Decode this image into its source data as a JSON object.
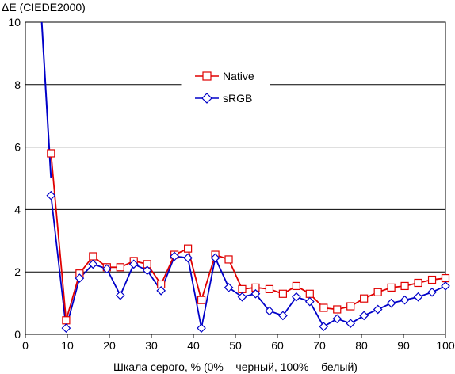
{
  "chart_data": {
    "type": "line",
    "title": "",
    "ylabel": "ΔE (CIEDE2000)",
    "xlabel": "Шкала серого, % (0% – черный, 100% – белый)",
    "xlim": [
      0,
      100
    ],
    "ylim": [
      0,
      10
    ],
    "x_ticks": [
      "0",
      "10",
      "20",
      "30",
      "40",
      "50",
      "60",
      "70",
      "80",
      "90",
      "100"
    ],
    "y_ticks": [
      "0",
      "2",
      "4",
      "6",
      "8",
      "10"
    ],
    "grid": "horizontal",
    "legend_position": "upper-center",
    "series": [
      {
        "name": "Native",
        "color": "#e00000",
        "marker": "square",
        "x": [
          6.1,
          9.7,
          12.9,
          16.1,
          19.4,
          22.6,
          25.8,
          29.0,
          32.3,
          35.5,
          38.7,
          41.9,
          45.2,
          48.4,
          51.6,
          54.8,
          58.1,
          61.3,
          64.5,
          67.7,
          71.0,
          74.2,
          77.4,
          80.6,
          83.9,
          87.1,
          90.3,
          93.5,
          96.8,
          100.0
        ],
        "y": [
          5.8,
          0.45,
          1.95,
          2.5,
          2.15,
          2.15,
          2.35,
          2.25,
          1.6,
          2.55,
          2.75,
          1.1,
          2.55,
          2.4,
          1.45,
          1.5,
          1.45,
          1.3,
          1.55,
          1.3,
          0.85,
          0.8,
          0.9,
          1.15,
          1.35,
          1.5,
          1.55,
          1.65,
          1.75,
          1.8
        ]
      },
      {
        "name": "sRGB",
        "color": "#0000c8",
        "marker": "diamond",
        "x": [
          6.1,
          9.7,
          12.9,
          16.1,
          19.4,
          22.6,
          25.8,
          29.0,
          32.3,
          35.5,
          38.7,
          41.9,
          45.2,
          48.4,
          51.6,
          54.8,
          58.1,
          61.3,
          64.5,
          67.7,
          71.0,
          74.2,
          77.4,
          80.6,
          83.9,
          87.1,
          90.3,
          93.5,
          96.8,
          100.0
        ],
        "y": [
          4.45,
          0.2,
          1.8,
          2.25,
          2.1,
          1.25,
          2.25,
          2.05,
          1.4,
          2.5,
          2.45,
          0.2,
          2.45,
          1.5,
          1.2,
          1.3,
          0.75,
          0.6,
          1.2,
          1.05,
          0.25,
          0.5,
          0.35,
          0.6,
          0.8,
          1.0,
          1.1,
          1.2,
          1.35,
          1.55
        ]
      }
    ],
    "leading_segment": {
      "x": [
        3.9,
        6.1
      ],
      "y": [
        10.0,
        5.0
      ]
    }
  }
}
